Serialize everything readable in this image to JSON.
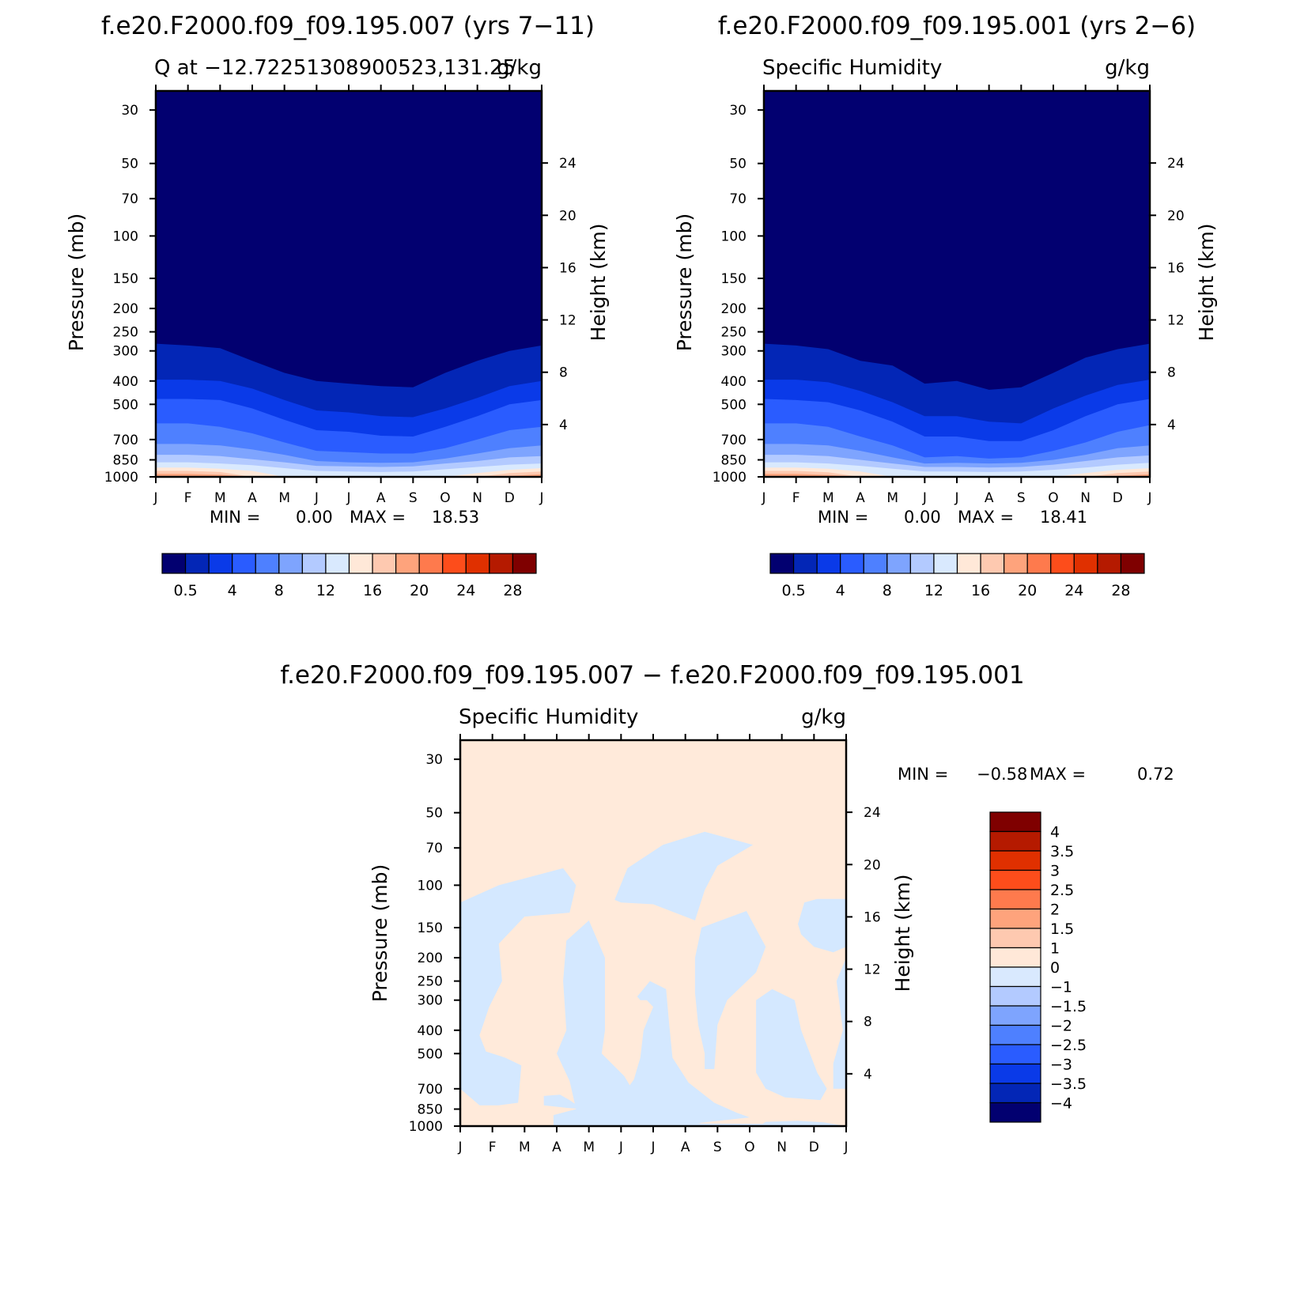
{
  "chart_data": [
    {
      "type": "contour",
      "title": "f.e20.F2000.f09_f09.195.007 (yrs 7−11)",
      "subtitle_left": "Q at −12.72251308900523,131.25",
      "subtitle_right": "g/kg",
      "ylabel": "Pressure (mb)",
      "ylabel_right": "Height (km)",
      "x_ticks": [
        "J",
        "F",
        "M",
        "A",
        "M",
        "J",
        "J",
        "A",
        "S",
        "O",
        "N",
        "D",
        "J"
      ],
      "y_ticks": [
        "30",
        "50",
        "70",
        "100",
        "150",
        "200",
        "250",
        "300",
        "400",
        "500",
        "700",
        "850",
        "1000"
      ],
      "y_ticks_right": [
        "24",
        "20",
        "16",
        "12",
        "8",
        "4"
      ],
      "y_scale": "log",
      "ylim": [
        1000,
        25
      ],
      "min_label": "MIN =",
      "min_value": "0.00",
      "max_label": "MAX =",
      "max_value": "18.53",
      "levels": [
        0.5,
        2,
        4,
        6,
        8,
        10,
        12,
        14,
        16,
        18,
        20,
        22,
        24,
        26,
        28
      ],
      "colorbar_labels": [
        "0.5",
        "4",
        "8",
        "12",
        "16",
        "20",
        "24",
        "28"
      ],
      "colorbar_colors": [
        "#020070",
        "#0326b6",
        "#0a3ae8",
        "#2a5cff",
        "#4e80ff",
        "#7ea4fe",
        "#b3caff",
        "#d9e9fe",
        "#ffe8d8",
        "#fec9b0",
        "#fea37c",
        "#fe7a4d",
        "#fd4d1b",
        "#e03000",
        "#b51a00",
        "#7f0000"
      ],
      "contours": [
        {
          "level": "0.5",
          "color": "#0326b6",
          "top_mb": [
            280,
            285,
            292,
            330,
            370,
            400,
            410,
            420,
            425,
            370,
            330,
            300,
            285
          ]
        },
        {
          "level": "2",
          "color": "#0a3ae8",
          "top_mb": [
            395,
            395,
            400,
            430,
            480,
            530,
            540,
            560,
            565,
            520,
            470,
            420,
            400
          ]
        },
        {
          "level": "4",
          "color": "#2a5cff",
          "top_mb": [
            475,
            475,
            480,
            520,
            580,
            640,
            650,
            675,
            680,
            620,
            560,
            500,
            480
          ]
        },
        {
          "level": "6",
          "color": "#4e80ff",
          "top_mb": [
            600,
            600,
            620,
            660,
            720,
            780,
            790,
            800,
            800,
            760,
            700,
            640,
            620
          ]
        },
        {
          "level": "8",
          "color": "#7ea4fe",
          "top_mb": [
            730,
            730,
            740,
            770,
            810,
            860,
            870,
            875,
            870,
            840,
            800,
            760,
            740
          ]
        },
        {
          "level": "10",
          "color": "#b3caff",
          "top_mb": [
            810,
            810,
            820,
            845,
            870,
            900,
            905,
            910,
            905,
            880,
            860,
            830,
            820
          ]
        },
        {
          "level": "12",
          "color": "#d9e9fe",
          "top_mb": [
            870,
            870,
            880,
            895,
            920,
            945,
            950,
            955,
            950,
            930,
            910,
            890,
            880
          ]
        },
        {
          "level": "14",
          "color": "#ffe8d8",
          "top_mb": [
            915,
            915,
            925,
            945,
            1000,
            1000,
            1000,
            1000,
            1000,
            1000,
            965,
            935,
            920
          ]
        },
        {
          "level": "16",
          "color": "#fec9b0",
          "top_mb": [
            945,
            945,
            955,
            1000,
            1000,
            1000,
            1000,
            1000,
            1000,
            1000,
            1000,
            965,
            950
          ]
        },
        {
          "level": "18",
          "color": "#fea37c",
          "top_mb": [
            972,
            972,
            980,
            1000,
            1000,
            1000,
            1000,
            1000,
            1000,
            1000,
            1000,
            990,
            975
          ]
        }
      ]
    },
    {
      "type": "contour",
      "title": "f.e20.F2000.f09_f09.195.001 (yrs 2−6)",
      "subtitle_left": "Specific Humidity",
      "subtitle_right": "g/kg",
      "ylabel": "Pressure (mb)",
      "ylabel_right": "Height (km)",
      "x_ticks": [
        "J",
        "F",
        "M",
        "A",
        "M",
        "J",
        "J",
        "A",
        "S",
        "O",
        "N",
        "D",
        "J"
      ],
      "y_ticks": [
        "30",
        "50",
        "70",
        "100",
        "150",
        "200",
        "250",
        "300",
        "400",
        "500",
        "700",
        "850",
        "1000"
      ],
      "y_ticks_right": [
        "24",
        "20",
        "16",
        "12",
        "8",
        "4"
      ],
      "y_scale": "log",
      "ylim": [
        1000,
        25
      ],
      "min_label": "MIN =",
      "min_value": "0.00",
      "max_label": "MAX =",
      "max_value": "18.41",
      "levels": [
        0.5,
        2,
        4,
        6,
        8,
        10,
        12,
        14,
        16,
        18,
        20,
        22,
        24,
        26,
        28
      ],
      "colorbar_labels": [
        "0.5",
        "4",
        "8",
        "12",
        "16",
        "20",
        "24",
        "28"
      ],
      "colorbar_colors": [
        "#020070",
        "#0326b6",
        "#0a3ae8",
        "#2a5cff",
        "#4e80ff",
        "#7ea4fe",
        "#b3caff",
        "#d9e9fe",
        "#ffe8d8",
        "#fec9b0",
        "#fea37c",
        "#fe7a4d",
        "#fd4d1b",
        "#e03000",
        "#b51a00",
        "#7f0000"
      ],
      "contours": [
        {
          "level": "0.5",
          "color": "#0326b6",
          "top_mb": [
            280,
            285,
            295,
            330,
            345,
            410,
            400,
            435,
            425,
            370,
            320,
            295,
            280
          ]
        },
        {
          "level": "2",
          "color": "#0a3ae8",
          "top_mb": [
            395,
            395,
            405,
            440,
            490,
            560,
            560,
            590,
            600,
            520,
            460,
            415,
            395
          ]
        },
        {
          "level": "4",
          "color": "#2a5cff",
          "top_mb": [
            475,
            480,
            490,
            530,
            590,
            680,
            680,
            710,
            710,
            640,
            560,
            500,
            475
          ]
        },
        {
          "level": "6",
          "color": "#4e80ff",
          "top_mb": [
            600,
            600,
            620,
            680,
            740,
            830,
            820,
            840,
            830,
            780,
            720,
            650,
            610
          ]
        },
        {
          "level": "8",
          "color": "#7ea4fe",
          "top_mb": [
            730,
            730,
            740,
            780,
            830,
            880,
            875,
            880,
            875,
            850,
            810,
            760,
            740
          ]
        },
        {
          "level": "10",
          "color": "#b3caff",
          "top_mb": [
            810,
            810,
            820,
            850,
            880,
            910,
            910,
            915,
            910,
            890,
            860,
            830,
            815
          ]
        },
        {
          "level": "12",
          "color": "#d9e9fe",
          "top_mb": [
            870,
            870,
            880,
            900,
            925,
            950,
            950,
            955,
            950,
            935,
            915,
            890,
            875
          ]
        },
        {
          "level": "14",
          "color": "#ffe8d8",
          "top_mb": [
            915,
            915,
            925,
            950,
            1000,
            1000,
            1000,
            1000,
            1000,
            1000,
            965,
            935,
            920
          ]
        },
        {
          "level": "16",
          "color": "#fec9b0",
          "top_mb": [
            945,
            945,
            958,
            1000,
            1000,
            1000,
            1000,
            1000,
            1000,
            1000,
            1000,
            965,
            950
          ]
        },
        {
          "level": "18",
          "color": "#fea37c",
          "top_mb": [
            972,
            972,
            982,
            1000,
            1000,
            1000,
            1000,
            1000,
            1000,
            1000,
            1000,
            990,
            975
          ]
        }
      ]
    },
    {
      "type": "contour",
      "title": "f.e20.F2000.f09_f09.195.007 − f.e20.F2000.f09_f09.195.001",
      "subtitle_left": "Specific Humidity",
      "subtitle_right": "g/kg",
      "ylabel": "Pressure (mb)",
      "ylabel_right": "Height (km)",
      "x_ticks": [
        "J",
        "F",
        "M",
        "A",
        "M",
        "J",
        "J",
        "A",
        "S",
        "O",
        "N",
        "D",
        "J"
      ],
      "y_ticks": [
        "30",
        "50",
        "70",
        "100",
        "150",
        "200",
        "250",
        "300",
        "400",
        "500",
        "700",
        "850",
        "1000"
      ],
      "y_ticks_right": [
        "24",
        "20",
        "16",
        "12",
        "8",
        "4"
      ],
      "y_scale": "log",
      "ylim": [
        1000,
        25
      ],
      "min_label": "MIN =",
      "min_value": "−0.58",
      "max_label": "MAX =",
      "max_value": "0.72",
      "levels": [
        -4,
        -3.5,
        -3,
        -2.5,
        -2,
        -1.5,
        -1,
        0,
        1,
        1.5,
        2,
        2.5,
        3,
        3.5,
        4
      ],
      "colorbar_labels": [
        "4",
        "3.5",
        "3",
        "2.5",
        "2",
        "1.5",
        "1",
        "0",
        "−1",
        "−1.5",
        "−2",
        "−2.5",
        "−3",
        "−3.5",
        "−4"
      ],
      "colorbar_colors": [
        "#7f0000",
        "#b51a00",
        "#e03000",
        "#fd4d1b",
        "#fe7a4d",
        "#fea37c",
        "#fec9b0",
        "#ffe8d8",
        "#d9e9fe",
        "#b3caff",
        "#7ea4fe",
        "#4e80ff",
        "#2a5cff",
        "#0a3ae8",
        "#0326b6",
        "#020070"
      ],
      "background_color": "#ffeada",
      "negative_color": "#d4e8ff",
      "negative_regions": [
        [
          [
            0,
            118
          ],
          [
            1.2,
            100
          ],
          [
            3.2,
            85
          ],
          [
            3.6,
            100
          ],
          [
            3.4,
            130
          ],
          [
            2,
            135
          ],
          [
            1.2,
            175
          ],
          [
            1.3,
            250
          ],
          [
            0.9,
            320
          ],
          [
            0.6,
            420
          ],
          [
            0.8,
            490
          ],
          [
            1.4,
            520
          ],
          [
            1.9,
            560
          ],
          [
            1.8,
            800
          ],
          [
            1.2,
            820
          ],
          [
            0.6,
            820
          ],
          [
            0,
            700
          ]
        ],
        [
          [
            0,
            195
          ],
          [
            0.5,
            210
          ],
          [
            0.3,
            195
          ],
          [
            0,
            180
          ]
        ],
        [
          [
            3.4,
            780
          ],
          [
            3.8,
            850
          ],
          [
            3.3,
            840
          ],
          [
            2.6,
            820
          ],
          [
            2.6,
            750
          ],
          [
            3.1,
            740
          ]
        ],
        [
          [
            3.2,
            250
          ],
          [
            3.3,
            170
          ],
          [
            4,
            140
          ],
          [
            4.5,
            200
          ],
          [
            4.5,
            400
          ],
          [
            4.4,
            500
          ],
          [
            5.1,
            620
          ],
          [
            5.6,
            800
          ],
          [
            5.6,
            900
          ],
          [
            7.5,
            975
          ],
          [
            10,
            980
          ],
          [
            11,
            1000
          ],
          [
            0,
            1000
          ],
          [
            0,
            1000
          ],
          [
            2.9,
            1000
          ],
          [
            2.9,
            900
          ],
          [
            3.6,
            850
          ],
          [
            3.4,
            650
          ],
          [
            3,
            500
          ],
          [
            3.3,
            400
          ]
        ],
        [
          [
            5.5,
            290
          ],
          [
            5.9,
            250
          ],
          [
            6.4,
            270
          ],
          [
            6.5,
            380
          ],
          [
            6.6,
            520
          ],
          [
            7.1,
            660
          ],
          [
            7.9,
            800
          ],
          [
            8.6,
            880
          ],
          [
            9,
            920
          ],
          [
            7,
            985
          ],
          [
            4.5,
            1000
          ],
          [
            4.5,
            900
          ],
          [
            5,
            760
          ],
          [
            5.4,
            640
          ],
          [
            5.6,
            520
          ],
          [
            5.7,
            400
          ],
          [
            6,
            320
          ],
          [
            5.8,
            300
          ],
          [
            5.6,
            300
          ]
        ],
        [
          [
            4.8,
            115
          ],
          [
            5.2,
            85
          ],
          [
            6.3,
            68
          ],
          [
            7.6,
            60
          ],
          [
            9.1,
            68
          ],
          [
            8,
            83
          ],
          [
            7.6,
            105
          ],
          [
            7.3,
            140
          ],
          [
            6,
            120
          ],
          [
            5,
            118
          ]
        ],
        [
          [
            7.3,
            200
          ],
          [
            7.5,
            150
          ],
          [
            8.9,
            128
          ],
          [
            9.5,
            180
          ],
          [
            9.2,
            230
          ],
          [
            8.3,
            300
          ],
          [
            8,
            380
          ],
          [
            7.9,
            580
          ],
          [
            7.6,
            580
          ],
          [
            7.6,
            500
          ],
          [
            7.4,
            380
          ],
          [
            7.3,
            280
          ]
        ],
        [
          [
            9.2,
            300
          ],
          [
            9.7,
            270
          ],
          [
            10.4,
            300
          ],
          [
            10.6,
            400
          ],
          [
            11.1,
            600
          ],
          [
            11.4,
            700
          ],
          [
            11.2,
            780
          ],
          [
            10.1,
            760
          ],
          [
            9.5,
            700
          ],
          [
            9.2,
            600
          ],
          [
            9.2,
            400
          ]
        ],
        [
          [
            10.5,
            145
          ],
          [
            10.7,
            118
          ],
          [
            11.1,
            114
          ],
          [
            12,
            114
          ],
          [
            12,
            180
          ],
          [
            11.6,
            190
          ],
          [
            11,
            180
          ],
          [
            10.6,
            160
          ]
        ],
        [
          [
            11.7,
            250
          ],
          [
            12,
            200
          ],
          [
            12,
            700
          ],
          [
            11.6,
            700
          ],
          [
            11.6,
            550
          ],
          [
            11.9,
            400
          ]
        ],
        [
          [
            9.3,
            1000
          ],
          [
            9.5,
            960
          ],
          [
            10.5,
            950
          ],
          [
            11.3,
            965
          ],
          [
            12,
            1000
          ]
        ]
      ]
    }
  ]
}
